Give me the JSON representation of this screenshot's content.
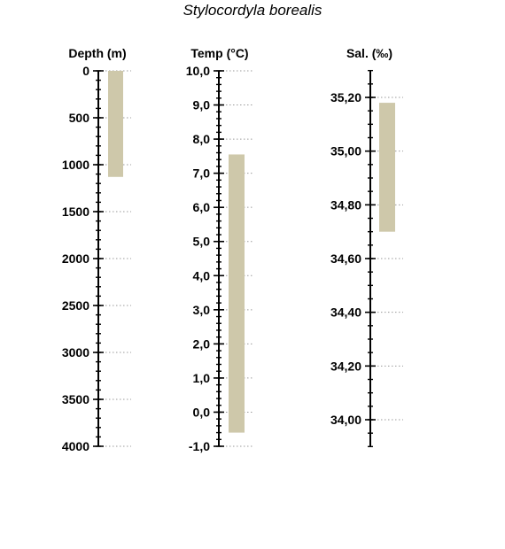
{
  "chart_data": {
    "title": "Stylocordyla borealis",
    "type": "bar",
    "bar_color": "#CEC8AA",
    "axes": [
      {
        "id": "depth",
        "label": "Depth (m)",
        "inverted": true,
        "range": [
          0,
          4000
        ],
        "major_ticks": [
          0,
          500,
          1000,
          1500,
          2000,
          2500,
          3000,
          3500,
          4000
        ],
        "tick_labels": [
          "0",
          "500",
          "1000",
          "1500",
          "2000",
          "2500",
          "3000",
          "3500",
          "4000"
        ],
        "minor_step": 100,
        "grid": "dotted",
        "bar": [
          0,
          1130
        ]
      },
      {
        "id": "temp",
        "label": "Temp (°C)",
        "inverted": false,
        "range": [
          -1.0,
          10.0
        ],
        "major_ticks": [
          -1,
          0,
          1,
          2,
          3,
          4,
          5,
          6,
          7,
          8,
          9,
          10
        ],
        "tick_labels": [
          "-1,0",
          "0,0",
          "1,0",
          "2,0",
          "3,0",
          "4,0",
          "5,0",
          "6,0",
          "7,0",
          "8,0",
          "9,0",
          "10,0"
        ],
        "minor_step": 0.2,
        "grid": "dotted",
        "bar": [
          -0.6,
          7.55
        ]
      },
      {
        "id": "sal",
        "label": "Sal. (‰)",
        "inverted": false,
        "range": [
          33.9,
          35.3
        ],
        "major_ticks": [
          34.0,
          34.2,
          34.4,
          34.6,
          34.8,
          35.0,
          35.2
        ],
        "tick_labels": [
          "34,00",
          "34,20",
          "34,40",
          "34,60",
          "34,80",
          "35,00",
          "35,20"
        ],
        "minor_step": 0.05,
        "grid": "dotted",
        "bar": [
          34.7,
          35.18
        ]
      }
    ]
  }
}
